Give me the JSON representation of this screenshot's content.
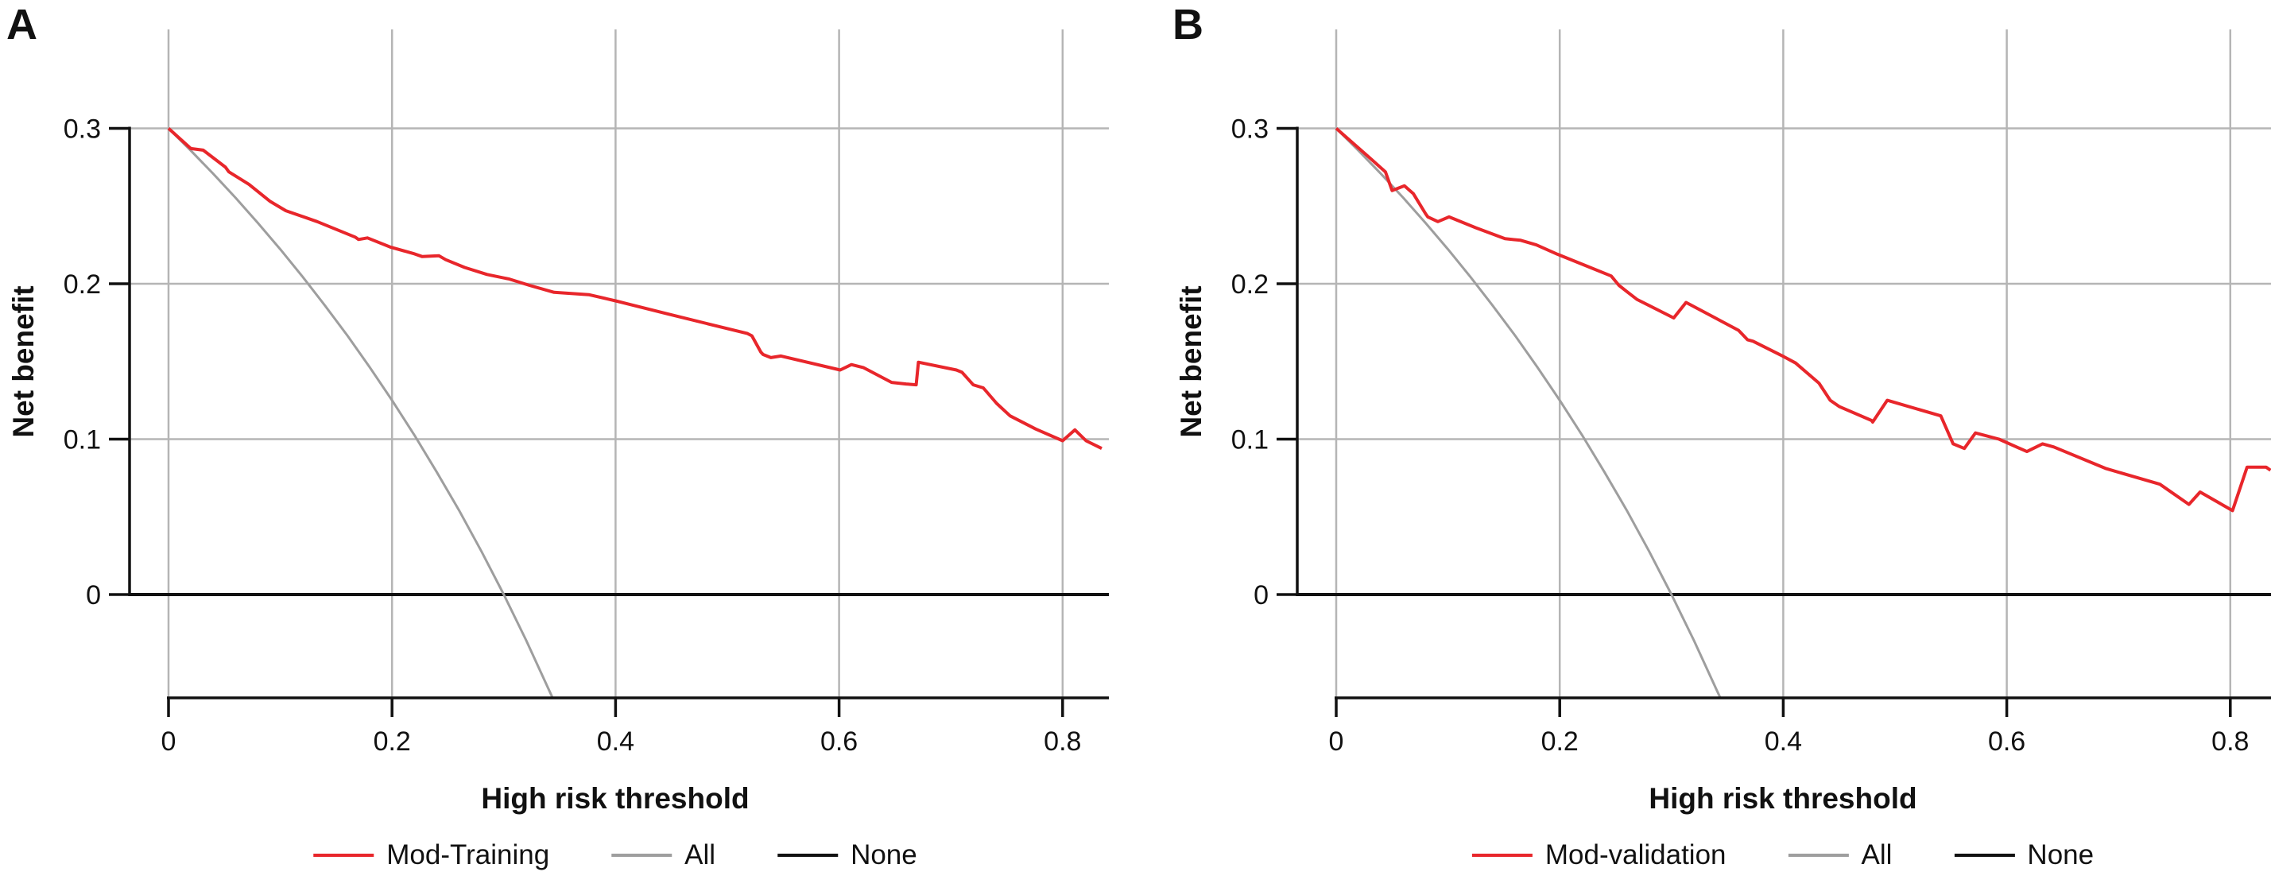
{
  "figure": {
    "colors": {
      "model_red": "#e8262b",
      "all_gray": "#9e9e9e",
      "none_black": "#111111",
      "grid_gray": "#b5b5b5",
      "axis_black": "#111111"
    },
    "panels": [
      {
        "panel_label": "A",
        "y_axis_label": "Net benefit",
        "x_axis_label": "High risk threshold",
        "legend": [
          {
            "label": "Mod-Training",
            "color": "#e8262b"
          },
          {
            "label": "All",
            "color": "#9e9e9e"
          },
          {
            "label": "None",
            "color": "#111111"
          }
        ],
        "chart_data": {
          "type": "line",
          "title": "",
          "xlabel": "High risk threshold",
          "ylabel": "Net benefit",
          "xlim": [
            -0.035,
            0.841
          ],
          "ylim": [
            -0.066,
            0.364
          ],
          "grid": true,
          "legend_position": "bottom",
          "x_ticks": [
            {
              "v": 0,
              "label": "0"
            },
            {
              "v": 0.2,
              "label": "0.2"
            },
            {
              "v": 0.4,
              "label": "0.4"
            },
            {
              "v": 0.6,
              "label": "0.6"
            },
            {
              "v": 0.8,
              "label": "0.8"
            }
          ],
          "y_ticks": [
            {
              "v": 0,
              "label": "0"
            },
            {
              "v": 0.1,
              "label": "0.1"
            },
            {
              "v": 0.2,
              "label": "0.2"
            },
            {
              "v": 0.3,
              "label": "0.3"
            }
          ],
          "series": [
            {
              "name": "Mod-Training",
              "color": "#e8262b",
              "points": [
                [
                  0,
                  0.3
                ],
                [
                  0.02,
                  0.287
                ],
                [
                  0.031,
                  0.286
                ],
                [
                  0.051,
                  0.275
                ],
                [
                  0.054,
                  0.272
                ],
                [
                  0.072,
                  0.264
                ],
                [
                  0.091,
                  0.253
                ],
                [
                  0.105,
                  0.247
                ],
                [
                  0.133,
                  0.24
                ],
                [
                  0.167,
                  0.23
                ],
                [
                  0.17,
                  0.2285
                ],
                [
                  0.178,
                  0.2295
                ],
                [
                  0.199,
                  0.2235
                ],
                [
                  0.219,
                  0.2195
                ],
                [
                  0.227,
                  0.2175
                ],
                [
                  0.242,
                  0.218
                ],
                [
                  0.248,
                  0.2155
                ],
                [
                  0.265,
                  0.2105
                ],
                [
                  0.285,
                  0.206
                ],
                [
                  0.305,
                  0.203
                ],
                [
                  0.323,
                  0.199
                ],
                [
                  0.345,
                  0.1945
                ],
                [
                  0.376,
                  0.193
                ],
                [
                  0.4,
                  0.189
                ],
                [
                  0.447,
                  0.1805
                ],
                [
                  0.518,
                  0.168
                ],
                [
                  0.522,
                  0.1665
                ],
                [
                  0.53,
                  0.156
                ],
                [
                  0.532,
                  0.1545
                ],
                [
                  0.539,
                  0.1525
                ],
                [
                  0.548,
                  0.1535
                ],
                [
                  0.598,
                  0.145
                ],
                [
                  0.601,
                  0.1445
                ],
                [
                  0.611,
                  0.148
                ],
                [
                  0.622,
                  0.146
                ],
                [
                  0.647,
                  0.1365
                ],
                [
                  0.66,
                  0.1355
                ],
                [
                  0.669,
                  0.135
                ],
                [
                  0.671,
                  0.1495
                ],
                [
                  0.705,
                  0.1445
                ],
                [
                  0.71,
                  0.143
                ],
                [
                  0.72,
                  0.135
                ],
                [
                  0.729,
                  0.133
                ],
                [
                  0.741,
                  0.123
                ],
                [
                  0.753,
                  0.115
                ],
                [
                  0.776,
                  0.1065
                ],
                [
                  0.8,
                  0.099
                ],
                [
                  0.811,
                  0.106
                ],
                [
                  0.821,
                  0.099
                ],
                [
                  0.835,
                  0.094
                ]
              ]
            },
            {
              "name": "All",
              "color": "#9e9e9e",
              "points": [
                [
                  0,
                  0.3
                ],
                [
                  0.02,
                  0.2857
                ],
                [
                  0.04,
                  0.2708
                ],
                [
                  0.06,
                  0.2553
                ],
                [
                  0.08,
                  0.2391
                ],
                [
                  0.1,
                  0.2222
                ],
                [
                  0.12,
                  0.2045
                ],
                [
                  0.14,
                  0.186
                ],
                [
                  0.16,
                  0.1667
                ],
                [
                  0.18,
                  0.1463
                ],
                [
                  0.2,
                  0.125
                ],
                [
                  0.22,
                  0.1026
                ],
                [
                  0.24,
                  0.0789
                ],
                [
                  0.26,
                  0.0541
                ],
                [
                  0.28,
                  0.0278
                ],
                [
                  0.3,
                  0
                ],
                [
                  0.32,
                  -0.0294
                ],
                [
                  0.3437,
                  -0.0665
                ]
              ]
            },
            {
              "name": "None",
              "color": "#111111",
              "points": [
                [
                  -0.035,
                  0
                ],
                [
                  0.8414,
                  0
                ]
              ]
            }
          ]
        }
      },
      {
        "panel_label": "B",
        "y_axis_label": "Net benefit",
        "x_axis_label": "High risk threshold",
        "legend": [
          {
            "label": "Mod-validation",
            "color": "#e8262b"
          },
          {
            "label": "All",
            "color": "#9e9e9e"
          },
          {
            "label": "None",
            "color": "#111111"
          }
        ],
        "chart_data": {
          "type": "line",
          "title": "",
          "xlabel": "High risk threshold",
          "ylabel": "Net benefit",
          "xlim": [
            -0.035,
            0.837
          ],
          "ylim": [
            -0.066,
            0.364
          ],
          "grid": true,
          "legend_position": "bottom",
          "x_ticks": [
            {
              "v": 0,
              "label": "0"
            },
            {
              "v": 0.2,
              "label": "0.2"
            },
            {
              "v": 0.4,
              "label": "0.4"
            },
            {
              "v": 0.6,
              "label": "0.6"
            },
            {
              "v": 0.8,
              "label": "0.8"
            }
          ],
          "y_ticks": [
            {
              "v": 0,
              "label": "0"
            },
            {
              "v": 0.1,
              "label": "0.1"
            },
            {
              "v": 0.2,
              "label": "0.2"
            },
            {
              "v": 0.3,
              "label": "0.3"
            }
          ],
          "series": [
            {
              "name": "Mod-validation",
              "color": "#e8262b",
              "points": [
                [
                  0,
                  0.3
                ],
                [
                  0.03,
                  0.281
                ],
                [
                  0.044,
                  0.272
                ],
                [
                  0.05,
                  0.26
                ],
                [
                  0.061,
                  0.263
                ],
                [
                  0.069,
                  0.258
                ],
                [
                  0.08,
                  0.245
                ],
                [
                  0.082,
                  0.243
                ],
                [
                  0.091,
                  0.24
                ],
                [
                  0.101,
                  0.243
                ],
                [
                  0.125,
                  0.236
                ],
                [
                  0.151,
                  0.229
                ],
                [
                  0.165,
                  0.228
                ],
                [
                  0.179,
                  0.225
                ],
                [
                  0.198,
                  0.219
                ],
                [
                  0.222,
                  0.212
                ],
                [
                  0.246,
                  0.205
                ],
                [
                  0.253,
                  0.199
                ],
                [
                  0.26,
                  0.195
                ],
                [
                  0.269,
                  0.19
                ],
                [
                  0.302,
                  0.178
                ],
                [
                  0.313,
                  0.188
                ],
                [
                  0.36,
                  0.17
                ],
                [
                  0.368,
                  0.164
                ],
                [
                  0.373,
                  0.163
                ],
                [
                  0.398,
                  0.154
                ],
                [
                  0.411,
                  0.149
                ],
                [
                  0.432,
                  0.136
                ],
                [
                  0.442,
                  0.125
                ],
                [
                  0.45,
                  0.121
                ],
                [
                  0.479,
                  0.112
                ],
                [
                  0.48,
                  0.111
                ],
                [
                  0.493,
                  0.125
                ],
                [
                  0.541,
                  0.115
                ],
                [
                  0.552,
                  0.097
                ],
                [
                  0.562,
                  0.094
                ],
                [
                  0.572,
                  0.104
                ],
                [
                  0.593,
                  0.1
                ],
                [
                  0.618,
                  0.092
                ],
                [
                  0.632,
                  0.097
                ],
                [
                  0.642,
                  0.095
                ],
                [
                  0.689,
                  0.081
                ],
                [
                  0.737,
                  0.071
                ],
                [
                  0.763,
                  0.058
                ],
                [
                  0.773,
                  0.066
                ],
                [
                  0.802,
                  0.054
                ],
                [
                  0.815,
                  0.082
                ],
                [
                  0.832,
                  0.082
                ],
                [
                  0.836,
                  0.08
                ]
              ]
            },
            {
              "name": "All",
              "color": "#9e9e9e",
              "points": [
                [
                  0,
                  0.3
                ],
                [
                  0.02,
                  0.2857
                ],
                [
                  0.04,
                  0.2708
                ],
                [
                  0.06,
                  0.2553
                ],
                [
                  0.08,
                  0.2391
                ],
                [
                  0.1,
                  0.2222
                ],
                [
                  0.12,
                  0.2045
                ],
                [
                  0.14,
                  0.186
                ],
                [
                  0.16,
                  0.1667
                ],
                [
                  0.18,
                  0.1463
                ],
                [
                  0.2,
                  0.125
                ],
                [
                  0.22,
                  0.1026
                ],
                [
                  0.24,
                  0.0789
                ],
                [
                  0.26,
                  0.0541
                ],
                [
                  0.28,
                  0.0278
                ],
                [
                  0.3,
                  0
                ],
                [
                  0.32,
                  -0.0294
                ],
                [
                  0.3437,
                  -0.0665
                ]
              ]
            },
            {
              "name": "None",
              "color": "#111111",
              "points": [
                [
                  -0.035,
                  0
                ],
                [
                  0.8364,
                  0
                ]
              ]
            }
          ]
        }
      }
    ]
  }
}
